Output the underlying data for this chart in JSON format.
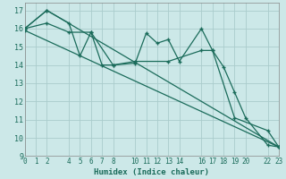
{
  "xlabel": "Humidex (Indice chaleur)",
  "bg_color": "#cce8e8",
  "grid_color_major": "#aacccc",
  "grid_color_minor": "#bbdddd",
  "line_color": "#1a6b5a",
  "xlim": [
    0,
    23
  ],
  "ylim": [
    9,
    17.4
  ],
  "xticks": [
    0,
    1,
    2,
    4,
    5,
    6,
    7,
    8,
    10,
    11,
    12,
    13,
    14,
    16,
    17,
    18,
    19,
    20,
    22,
    23
  ],
  "yticks": [
    9,
    10,
    11,
    12,
    13,
    14,
    15,
    16,
    17
  ],
  "line1_x": [
    0,
    2,
    4,
    5,
    6,
    8,
    10,
    11,
    12,
    13,
    14,
    16,
    17,
    18,
    19,
    20,
    22,
    23
  ],
  "line1_y": [
    16.0,
    17.0,
    16.3,
    14.5,
    15.8,
    14.0,
    14.1,
    15.75,
    15.2,
    15.4,
    14.2,
    16.0,
    14.8,
    13.9,
    12.5,
    11.1,
    9.6,
    9.5
  ],
  "line2_x": [
    0,
    2,
    4,
    6,
    7,
    8,
    10,
    13,
    16,
    17,
    19,
    22,
    23
  ],
  "line2_y": [
    16.0,
    16.3,
    15.8,
    15.8,
    14.0,
    14.0,
    14.2,
    14.2,
    14.8,
    14.8,
    11.1,
    10.4,
    9.5
  ],
  "line3_x": [
    0,
    2,
    23
  ],
  "line3_y": [
    16.0,
    17.0,
    9.5
  ],
  "line4_x": [
    0,
    23
  ],
  "line4_y": [
    15.9,
    9.5
  ],
  "tick_fontsize": 5.5,
  "xlabel_fontsize": 6.5
}
